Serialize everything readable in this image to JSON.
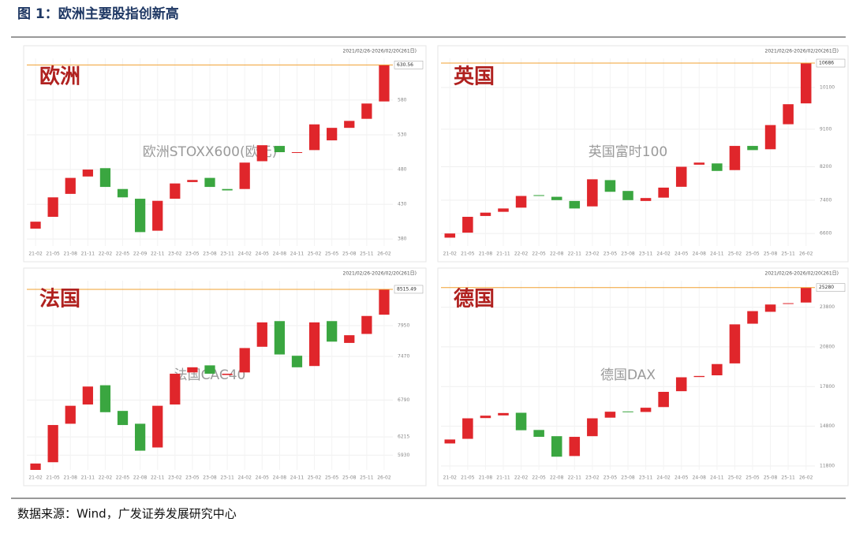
{
  "title": "图 1：欧洲主要股指创新高",
  "source": "数据来源：Wind，广发证券发展研究中心",
  "chart_data": [
    {
      "type": "candlestick",
      "label": "欧洲",
      "watermark": "欧洲STOXX600(欧元)",
      "date_range": "2021/02/26-2026/02/20(261日)",
      "categories": [
        "21-02",
        "21-05",
        "21-08",
        "21-11",
        "22-02",
        "22-05",
        "22-09",
        "22-11",
        "23-02",
        "23-05",
        "23-08",
        "23-11",
        "24-02",
        "24-05",
        "24-08",
        "24-11",
        "25-02",
        "25-05",
        "25-08",
        "25-11",
        "26-02"
      ],
      "open": [
        395,
        412,
        445,
        470,
        482,
        452,
        438,
        392,
        438,
        462,
        468,
        452,
        452,
        492,
        514,
        504,
        508,
        522,
        540,
        553,
        578
      ],
      "close": [
        405,
        440,
        468,
        480,
        455,
        440,
        390,
        435,
        460,
        465,
        455,
        450,
        490,
        515,
        505,
        505,
        545,
        540,
        550,
        575,
        630.56
      ],
      "ylim": [
        370,
        640
      ],
      "yticks": [
        380,
        430,
        480,
        530,
        580
      ],
      "last_value": 630.56,
      "up_color": "#e0262b",
      "down_color": "#3aa640"
    },
    {
      "type": "candlestick",
      "label": "英国",
      "watermark": "英国富时100",
      "date_range": "2021/02/26-2026/02/20(261日)",
      "categories": [
        "21-02",
        "21-05",
        "21-08",
        "21-11",
        "22-02",
        "22-05",
        "22-08",
        "22-11",
        "23-02",
        "23-05",
        "23-08",
        "23-11",
        "24-02",
        "24-05",
        "24-08",
        "24-11",
        "25-02",
        "25-05",
        "25-08",
        "25-11",
        "26-02"
      ],
      "open": [
        6500,
        6620,
        7020,
        7120,
        7220,
        7520,
        7480,
        7380,
        7250,
        7880,
        7620,
        7380,
        7460,
        7720,
        8250,
        8280,
        8120,
        8700,
        8620,
        9220,
        9720
      ],
      "close": [
        6600,
        7000,
        7100,
        7200,
        7500,
        7500,
        7400,
        7200,
        7900,
        7600,
        7400,
        7450,
        7700,
        8200,
        8300,
        8100,
        8700,
        8600,
        9200,
        9700,
        10686
      ],
      "ylim": [
        6300,
        10800
      ],
      "yticks": [
        6600,
        7400,
        8200,
        9100,
        10100
      ],
      "last_value": 10686,
      "up_color": "#e0262b",
      "down_color": "#3aa640"
    },
    {
      "type": "candlestick",
      "label": "法国",
      "watermark": "法国CAC40",
      "date_range": "2021/02/26-2026/02/20(261日)",
      "categories": [
        "21-02",
        "21-05",
        "21-08",
        "21-11",
        "22-02",
        "22-05",
        "22-08",
        "22-11",
        "23-02",
        "23-05",
        "23-08",
        "23-11",
        "24-02",
        "24-05",
        "24-08",
        "24-11",
        "25-02",
        "25-05",
        "25-08",
        "25-11",
        "26-02"
      ],
      "open": [
        5700,
        5820,
        6420,
        6720,
        7020,
        6620,
        6420,
        6050,
        6720,
        7220,
        7330,
        7180,
        7220,
        7620,
        8020,
        7480,
        7320,
        8020,
        7680,
        7820,
        8120
      ],
      "close": [
        5800,
        6400,
        6700,
        7000,
        6600,
        6400,
        6000,
        6700,
        7200,
        7300,
        7200,
        7200,
        7600,
        8000,
        7500,
        7300,
        8000,
        7700,
        7800,
        8100,
        8515.49
      ],
      "ylim": [
        5700,
        8650
      ],
      "yticks": [
        5930,
        6215,
        6790,
        7470,
        7950
      ],
      "last_value": 8515.49,
      "up_color": "#e0262b",
      "down_color": "#3aa640"
    },
    {
      "type": "candlestick",
      "label": "德国",
      "watermark": "德国DAX",
      "date_range": "2021/02/26-2026/02/20(261日)",
      "categories": [
        "21-02",
        "21-05",
        "21-08",
        "21-11",
        "22-02",
        "22-05",
        "22-08",
        "22-11",
        "23-02",
        "23-05",
        "23-08",
        "23-11",
        "24-02",
        "24-05",
        "24-08",
        "24-11",
        "25-02",
        "25-05",
        "25-08",
        "25-11",
        "26-02"
      ],
      "open": [
        13500,
        13850,
        15420,
        15620,
        15820,
        14520,
        14050,
        12550,
        14050,
        15450,
        15920,
        15880,
        16250,
        17450,
        18520,
        18650,
        19550,
        22550,
        23450,
        24050,
        24150
      ],
      "close": [
        13800,
        15400,
        15600,
        15800,
        14500,
        14000,
        12500,
        14000,
        15400,
        15900,
        15900,
        16200,
        17400,
        18500,
        18600,
        19500,
        22500,
        23500,
        24000,
        24100,
        25280
      ],
      "ylim": [
        11500,
        25800
      ],
      "yticks": [
        11800,
        14800,
        17800,
        20800,
        23800
      ],
      "last_value": 25280,
      "up_color": "#e0262b",
      "down_color": "#3aa640"
    }
  ]
}
